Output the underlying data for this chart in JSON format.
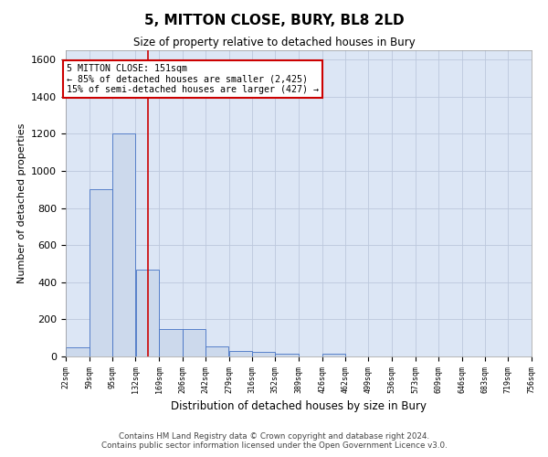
{
  "title": "5, MITTON CLOSE, BURY, BL8 2LD",
  "subtitle": "Size of property relative to detached houses in Bury",
  "xlabel": "Distribution of detached houses by size in Bury",
  "ylabel": "Number of detached properties",
  "footer_line1": "Contains HM Land Registry data © Crown copyright and database right 2024.",
  "footer_line2": "Contains public sector information licensed under the Open Government Licence v3.0.",
  "annotation_line1": "5 MITTON CLOSE: 151sqm",
  "annotation_line2": "← 85% of detached houses are smaller (2,425)",
  "annotation_line3": "15% of semi-detached houses are larger (427) →",
  "bar_edges": [
    22,
    59,
    95,
    132,
    169,
    206,
    242,
    279,
    316,
    352,
    389,
    426,
    462,
    499,
    536,
    573,
    609,
    646,
    683,
    719,
    756
  ],
  "bar_heights": [
    50,
    900,
    1200,
    470,
    150,
    150,
    55,
    30,
    25,
    15,
    0,
    15,
    0,
    0,
    0,
    0,
    0,
    0,
    0,
    0
  ],
  "vline_x": 151,
  "bar_color": "#ccd9ec",
  "bar_edge_color": "#4472c4",
  "vline_color": "#cc0000",
  "grid_color": "#bcc8dc",
  "bg_color": "#dce6f5",
  "annotation_box_edge_color": "#cc0000",
  "ylim": [
    0,
    1650
  ],
  "yticks": [
    0,
    200,
    400,
    600,
    800,
    1000,
    1200,
    1400,
    1600
  ]
}
